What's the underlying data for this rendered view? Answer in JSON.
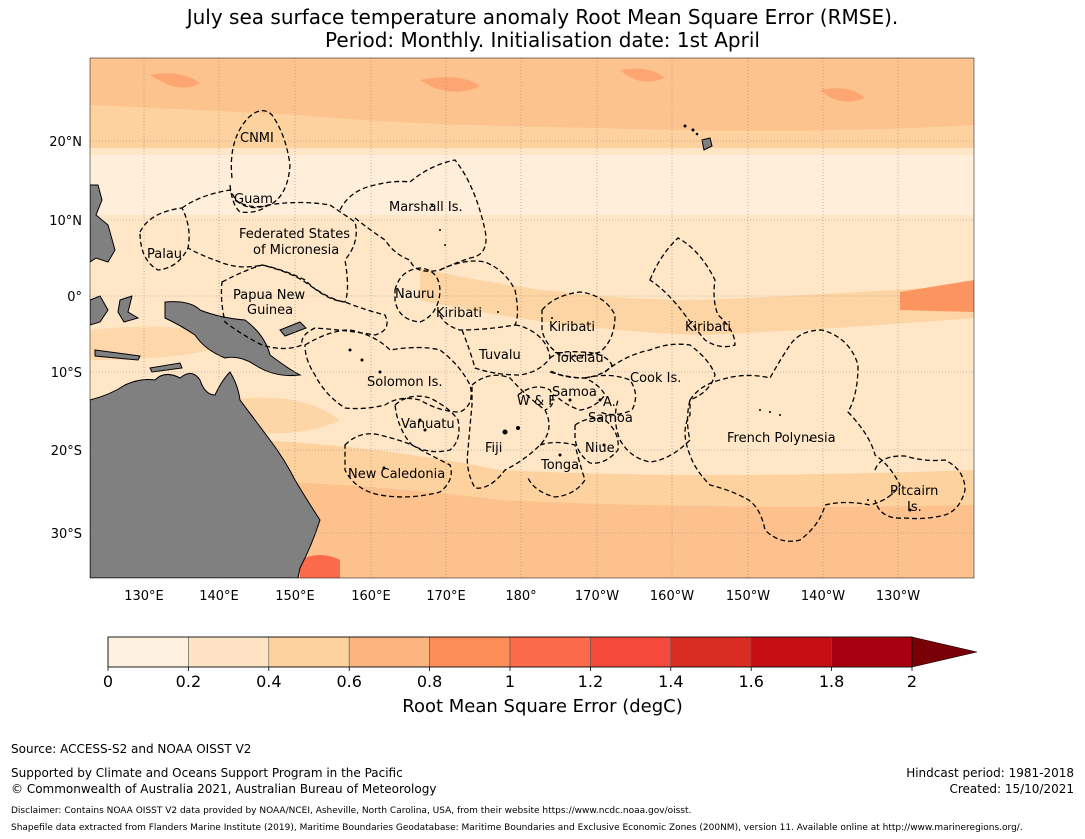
{
  "title": {
    "line1": "July sea surface temperature anomaly Root Mean Square Error (RMSE).",
    "line2": "Period: Monthly. Initialisation date: 1st April"
  },
  "map": {
    "lat_ticks": [
      "20°N",
      "10°N",
      "0°",
      "10°S",
      "20°S",
      "30°S"
    ],
    "lon_ticks": [
      "130°E",
      "140°E",
      "150°E",
      "160°E",
      "170°E",
      "180°",
      "170°W",
      "160°W",
      "150°W",
      "140°W",
      "130°W"
    ],
    "regions": [
      "CNMI",
      "Guam",
      "Marshall Is.",
      "Palau",
      "Federated States",
      "of Micronesia",
      "Papua New",
      "Guinea",
      "Nauru",
      "Kiribati",
      "Kiribati",
      "Kiribati",
      "Tuvalu",
      "Tokelau",
      "Solomon Is.",
      "Cook Is.",
      "W & F",
      "Samoa",
      "A.",
      "Samoa",
      "Vanuatu",
      "Fiji",
      "Niue",
      "French Polynesia",
      "Tonga",
      "New Caledonia",
      "Pitcairn",
      "Is."
    ],
    "colors": {
      "land": "#808080",
      "ocean_base": "#fee6c7",
      "grid": "#9a8a7a",
      "eez": "#000000"
    }
  },
  "colorbar": {
    "tick_labels": [
      "0",
      "0.2",
      "0.4",
      "0.6",
      "0.8",
      "1",
      "1.2",
      "1.4",
      "1.6",
      "1.8",
      "2"
    ],
    "colors": [
      "#fff0df",
      "#fee4c5",
      "#fdd29f",
      "#fcb57e",
      "#fc8d59",
      "#fb6a4a",
      "#f54a3b",
      "#d92c23",
      "#c70d14",
      "#a80010",
      "#7a0007"
    ],
    "extend": "max",
    "label": "Root Mean Square Error (degC)"
  },
  "footer": {
    "source": "Source: ACCESS-S2 and NOAA OISST V2",
    "supported": "Supported by Climate and Oceans Support Program in the Pacific",
    "copyright": "© Commonwealth of Australia 2021, Australian Bureau of Meteorology",
    "hindcast": "Hindcast period: 1981-2018",
    "created": "Created: 15/10/2021",
    "disclaimer": "Disclaimer: Contains NOAA OISST V2 data provided by NOAA/NCEI, Asheville, North Carolina, USA, from their website https://www.ncdc.noaa.gov/oisst.",
    "shapefile": "Shapefile data extracted from Flanders Marine Institute (2019), Maritime Boundaries Geodatabase: Maritime Boundaries and Exclusive Economic Zones (200NM), version 11. Available online at http://www.marineregions.org/."
  }
}
